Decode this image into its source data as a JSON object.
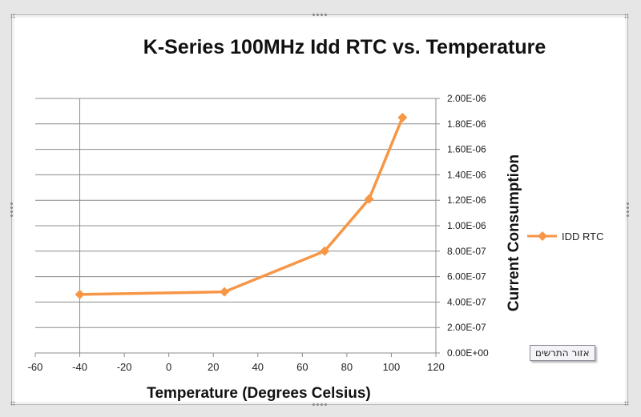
{
  "chart_data": {
    "type": "line",
    "title": "K-Series 100MHz Idd RTC vs. Temperature",
    "xlabel": "Temperature (Degrees Celsius)",
    "ylabel": "Current Consumption",
    "xlim": [
      -60,
      120
    ],
    "x_ticks": [
      -60,
      -40,
      -20,
      0,
      20,
      40,
      60,
      80,
      100,
      120
    ],
    "x_tick_labels": [
      "-60",
      "-40",
      "-20",
      "0",
      "20",
      "40",
      "60",
      "80",
      "100",
      "120"
    ],
    "ylim": [
      0,
      2e-06
    ],
    "y_ticks": [
      0,
      2e-07,
      4e-07,
      6e-07,
      8e-07,
      1e-06,
      1.2e-06,
      1.4e-06,
      1.6e-06,
      1.8e-06,
      2e-06
    ],
    "y_tick_labels": [
      "0.00E+00",
      "2.00E-07",
      "4.00E-07",
      "6.00E-07",
      "8.00E-07",
      "1.00E-06",
      "1.20E-06",
      "1.40E-06",
      "1.60E-06",
      "1.80E-06",
      "2.00E-06"
    ],
    "y_axis_side": "right",
    "grid": "horizontal",
    "legend_position": "right",
    "series": [
      {
        "name": "IDD RTC",
        "color": "#f79646",
        "marker": "diamond",
        "x": [
          -40,
          25,
          70,
          90,
          105
        ],
        "y": [
          4.6e-07,
          4.8e-07,
          8e-07,
          1.21e-06,
          1.85e-06
        ]
      }
    ]
  },
  "tooltip": {
    "text": "אזור התרשים"
  }
}
